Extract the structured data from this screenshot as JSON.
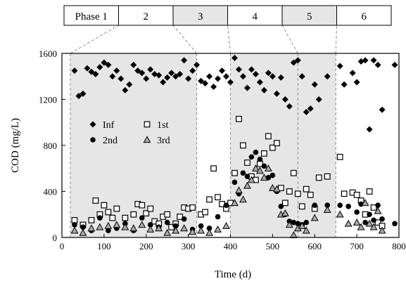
{
  "chart_data": {
    "type": "scatter",
    "title": "",
    "xlabel": "Time (d)",
    "ylabel": "COD (mg/L)",
    "xlim": [
      0,
      800
    ],
    "ylim": [
      0,
      1600
    ],
    "xticks": [
      "0",
      "100",
      "200",
      "300",
      "400",
      "500",
      "600",
      "700",
      "800"
    ],
    "yticks": [
      "0",
      "400",
      "800",
      "1200",
      "1600"
    ],
    "grid": false,
    "legend_position": "inside-left",
    "colors": {
      "marker": "#000000",
      "triangle_fill": "#a9a9a9",
      "phase_shade": "#e6e6e6",
      "phase_bar_shade": "#e6e6e6"
    },
    "phases": [
      {
        "label": "Phase  1",
        "start": 0,
        "end": 20,
        "shaded": false,
        "box_shaded": false
      },
      {
        "label": "2",
        "start": 20,
        "end": 320,
        "shaded": true,
        "box_shaded": false
      },
      {
        "label": "3",
        "start": 320,
        "end": 400,
        "shaded": false,
        "box_shaded": true
      },
      {
        "label": "4",
        "start": 400,
        "end": 560,
        "shaded": true,
        "box_shaded": false
      },
      {
        "label": "5",
        "start": 560,
        "end": 650,
        "shaded": true,
        "box_shaded": true
      },
      {
        "label": "6",
        "start": 650,
        "end": 800,
        "shaded": false,
        "box_shaded": false
      }
    ],
    "series": [
      {
        "name": "Inf",
        "marker": "diamond",
        "points": [
          [
            30,
            1450
          ],
          [
            40,
            1230
          ],
          [
            50,
            1250
          ],
          [
            60,
            1470
          ],
          [
            70,
            1440
          ],
          [
            80,
            1420
          ],
          [
            90,
            1480
          ],
          [
            100,
            1520
          ],
          [
            110,
            1500
          ],
          [
            120,
            1400
          ],
          [
            130,
            1450
          ],
          [
            140,
            1380
          ],
          [
            150,
            1280
          ],
          [
            160,
            1330
          ],
          [
            170,
            1500
          ],
          [
            180,
            1450
          ],
          [
            190,
            1430
          ],
          [
            200,
            1380
          ],
          [
            210,
            1460
          ],
          [
            220,
            1420
          ],
          [
            230,
            1410
          ],
          [
            240,
            1350
          ],
          [
            250,
            1390
          ],
          [
            260,
            1430
          ],
          [
            270,
            1400
          ],
          [
            280,
            1420
          ],
          [
            290,
            1540
          ],
          [
            300,
            1380
          ],
          [
            310,
            1450
          ],
          [
            320,
            1500
          ],
          [
            330,
            1360
          ],
          [
            340,
            1340
          ],
          [
            350,
            1400
          ],
          [
            360,
            1310
          ],
          [
            370,
            1380
          ],
          [
            380,
            1450
          ],
          [
            390,
            1400
          ],
          [
            400,
            1350
          ],
          [
            410,
            1560
          ],
          [
            420,
            1460
          ],
          [
            430,
            1400
          ],
          [
            440,
            1300
          ],
          [
            450,
            1460
          ],
          [
            460,
            1420
          ],
          [
            470,
            1350
          ],
          [
            480,
            1280
          ],
          [
            490,
            1430
          ],
          [
            500,
            1400
          ],
          [
            510,
            1250
          ],
          [
            520,
            1390
          ],
          [
            530,
            1200
          ],
          [
            540,
            1140
          ],
          [
            550,
            1520
          ],
          [
            560,
            1540
          ],
          [
            570,
            1400
          ],
          [
            580,
            1090
          ],
          [
            590,
            1120
          ],
          [
            600,
            1330
          ],
          [
            610,
            1200
          ],
          [
            630,
            1400
          ],
          [
            660,
            1490
          ],
          [
            670,
            1330
          ],
          [
            690,
            1430
          ],
          [
            700,
            1350
          ],
          [
            710,
            1530
          ],
          [
            720,
            1540
          ],
          [
            730,
            940
          ],
          [
            740,
            1540
          ],
          [
            750,
            1500
          ],
          [
            760,
            1110
          ],
          [
            790,
            1500
          ]
        ]
      },
      {
        "name": "1st",
        "marker": "square-open",
        "points": [
          [
            30,
            150
          ],
          [
            50,
            110
          ],
          [
            70,
            150
          ],
          [
            80,
            320
          ],
          [
            90,
            200
          ],
          [
            100,
            280
          ],
          [
            110,
            220
          ],
          [
            120,
            170
          ],
          [
            130,
            250
          ],
          [
            150,
            170
          ],
          [
            170,
            200
          ],
          [
            180,
            290
          ],
          [
            190,
            280
          ],
          [
            200,
            210
          ],
          [
            210,
            250
          ],
          [
            220,
            140
          ],
          [
            230,
            120
          ],
          [
            240,
            180
          ],
          [
            250,
            200
          ],
          [
            260,
            90
          ],
          [
            270,
            120
          ],
          [
            280,
            180
          ],
          [
            290,
            260
          ],
          [
            300,
            250
          ],
          [
            310,
            260
          ],
          [
            330,
            200
          ],
          [
            340,
            220
          ],
          [
            350,
            330
          ],
          [
            360,
            600
          ],
          [
            370,
            350
          ],
          [
            380,
            290
          ],
          [
            390,
            250
          ],
          [
            400,
            300
          ],
          [
            410,
            560
          ],
          [
            420,
            1030
          ],
          [
            430,
            800
          ],
          [
            440,
            650
          ],
          [
            450,
            530
          ],
          [
            460,
            500
          ],
          [
            470,
            640
          ],
          [
            480,
            730
          ],
          [
            490,
            880
          ],
          [
            500,
            780
          ],
          [
            510,
            820
          ],
          [
            520,
            430
          ],
          [
            530,
            300
          ],
          [
            540,
            400
          ],
          [
            550,
            560
          ],
          [
            560,
            380
          ],
          [
            570,
            270
          ],
          [
            580,
            420
          ],
          [
            590,
            370
          ],
          [
            600,
            250
          ],
          [
            610,
            520
          ],
          [
            630,
            530
          ],
          [
            660,
            700
          ],
          [
            670,
            380
          ],
          [
            690,
            390
          ],
          [
            700,
            370
          ],
          [
            710,
            320
          ],
          [
            720,
            200
          ],
          [
            730,
            400
          ],
          [
            740,
            260
          ],
          [
            750,
            130
          ],
          [
            760,
            100
          ]
        ]
      },
      {
        "name": "2nd",
        "marker": "circle",
        "points": [
          [
            30,
            110
          ],
          [
            50,
            90
          ],
          [
            70,
            60
          ],
          [
            90,
            170
          ],
          [
            110,
            60
          ],
          [
            130,
            80
          ],
          [
            150,
            120
          ],
          [
            170,
            60
          ],
          [
            190,
            170
          ],
          [
            210,
            110
          ],
          [
            230,
            90
          ],
          [
            250,
            130
          ],
          [
            270,
            100
          ],
          [
            290,
            160
          ],
          [
            310,
            70
          ],
          [
            330,
            100
          ],
          [
            350,
            80
          ],
          [
            370,
            180
          ],
          [
            390,
            280
          ],
          [
            410,
            480
          ],
          [
            420,
            380
          ],
          [
            430,
            560
          ],
          [
            440,
            530
          ],
          [
            450,
            700
          ],
          [
            460,
            740
          ],
          [
            470,
            680
          ],
          [
            480,
            620
          ],
          [
            490,
            520
          ],
          [
            500,
            540
          ],
          [
            510,
            400
          ],
          [
            520,
            270
          ],
          [
            530,
            200
          ],
          [
            540,
            140
          ],
          [
            550,
            130
          ],
          [
            560,
            120
          ],
          [
            570,
            110
          ],
          [
            580,
            130
          ],
          [
            600,
            280
          ],
          [
            630,
            280
          ],
          [
            660,
            280
          ],
          [
            680,
            270
          ],
          [
            700,
            220
          ],
          [
            710,
            290
          ],
          [
            720,
            130
          ],
          [
            730,
            200
          ],
          [
            740,
            150
          ],
          [
            750,
            280
          ],
          [
            760,
            160
          ],
          [
            790,
            120
          ]
        ]
      },
      {
        "name": "3rd",
        "marker": "triangle",
        "points": [
          [
            30,
            60
          ],
          [
            50,
            40
          ],
          [
            70,
            80
          ],
          [
            90,
            90
          ],
          [
            110,
            100
          ],
          [
            130,
            110
          ],
          [
            150,
            90
          ],
          [
            170,
            80
          ],
          [
            190,
            110
          ],
          [
            210,
            70
          ],
          [
            230,
            80
          ],
          [
            250,
            40
          ],
          [
            270,
            60
          ],
          [
            290,
            80
          ],
          [
            310,
            50
          ],
          [
            330,
            60
          ],
          [
            350,
            40
          ],
          [
            370,
            70
          ],
          [
            390,
            100
          ],
          [
            410,
            300
          ],
          [
            420,
            410
          ],
          [
            430,
            330
          ],
          [
            440,
            450
          ],
          [
            450,
            500
          ],
          [
            460,
            600
          ],
          [
            470,
            580
          ],
          [
            480,
            520
          ],
          [
            490,
            600
          ],
          [
            500,
            430
          ],
          [
            510,
            420
          ],
          [
            520,
            200
          ],
          [
            530,
            210
          ],
          [
            540,
            110
          ],
          [
            550,
            20
          ],
          [
            560,
            80
          ],
          [
            570,
            100
          ],
          [
            580,
            60
          ],
          [
            600,
            170
          ],
          [
            630,
            240
          ],
          [
            660,
            200
          ],
          [
            680,
            120
          ],
          [
            700,
            130
          ],
          [
            710,
            90
          ],
          [
            720,
            300
          ],
          [
            730,
            120
          ],
          [
            740,
            90
          ],
          [
            750,
            230
          ],
          [
            760,
            60
          ]
        ]
      }
    ]
  }
}
